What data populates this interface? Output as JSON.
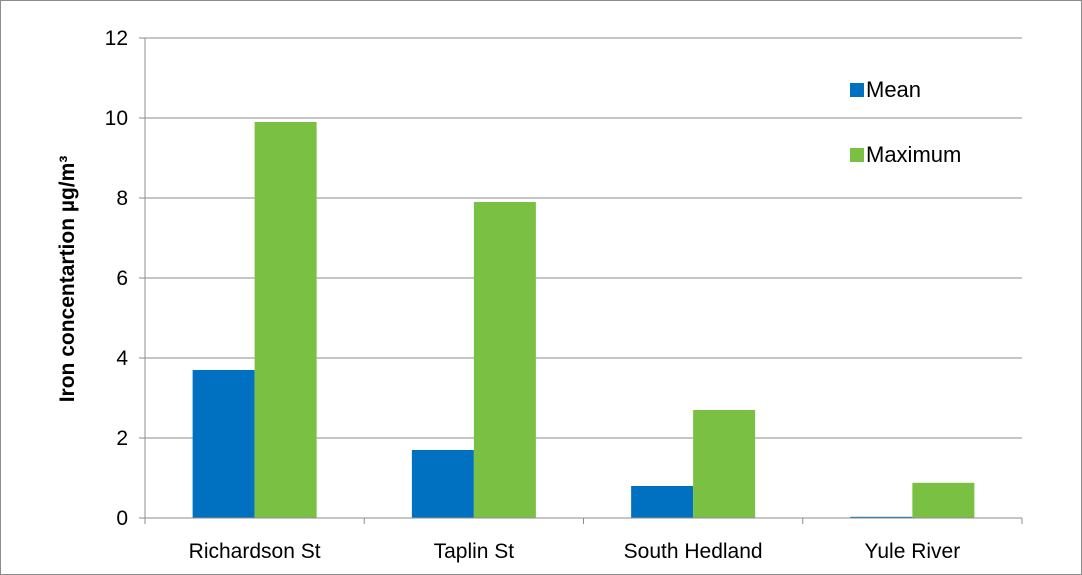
{
  "chart_data": {
    "type": "bar",
    "title": "",
    "xlabel": "",
    "ylabel": "Iron concentartion µg/m³",
    "categories": [
      "Richardson St",
      "Taplin St",
      "South Hedland",
      "Yule River"
    ],
    "series": [
      {
        "name": "Mean",
        "values": [
          3.7,
          1.7,
          0.8,
          0.03
        ],
        "color": "#0070c0"
      },
      {
        "name": "Maximum",
        "values": [
          9.9,
          7.9,
          2.7,
          0.88
        ],
        "color": "#7ac143"
      }
    ],
    "ylim": [
      0,
      12
    ],
    "yticks": [
      0,
      2,
      4,
      6,
      8,
      10,
      12
    ],
    "grid": true,
    "legend_position": "top-right",
    "gridline_color": "#8c8c8c"
  }
}
